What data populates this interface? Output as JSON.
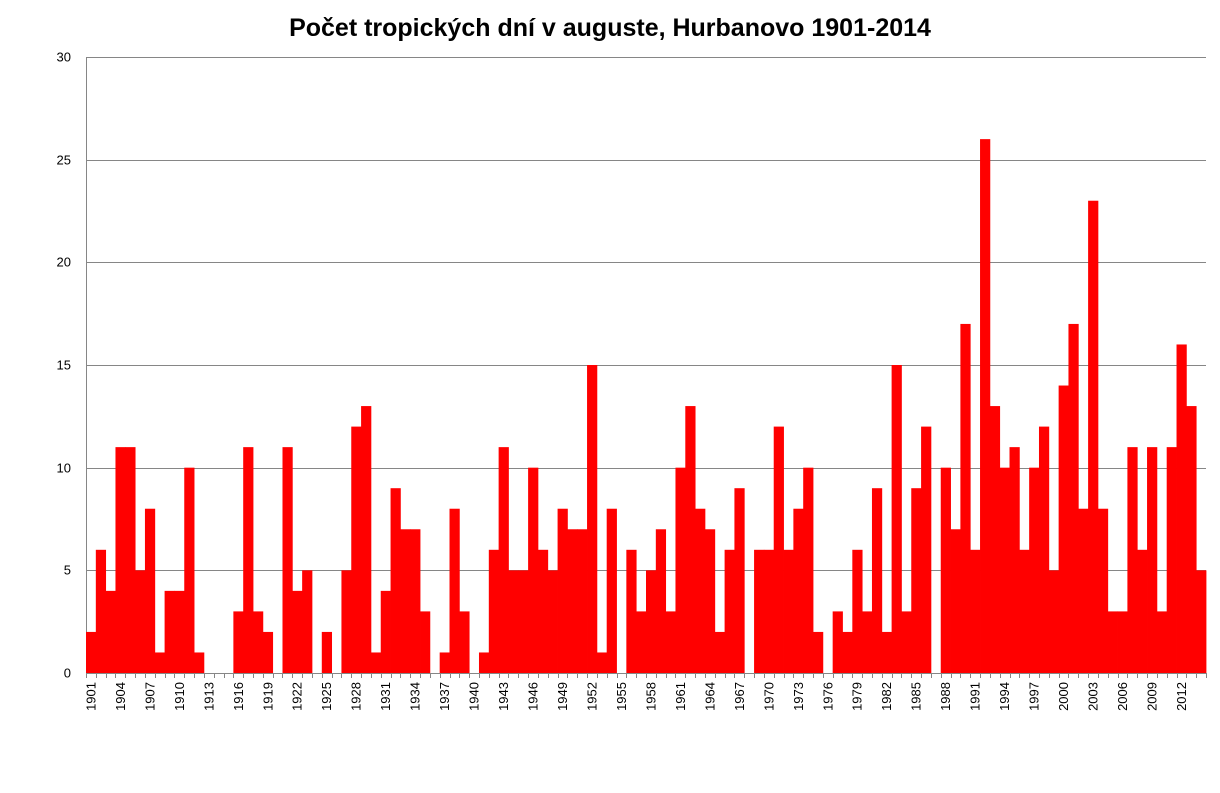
{
  "chart_data": {
    "type": "bar",
    "title": "Počet tropických dní v auguste, Hurbanovo 1901-2014",
    "xlabel": "",
    "ylabel": "",
    "ylim": [
      0,
      30
    ],
    "yticks": [
      0,
      5,
      10,
      15,
      20,
      25,
      30
    ],
    "grid": true,
    "legend": "none",
    "bar_color": "#ff0000",
    "gridline_color": "#868686",
    "categories": [
      1901,
      1902,
      1903,
      1904,
      1905,
      1906,
      1907,
      1908,
      1909,
      1910,
      1911,
      1912,
      1913,
      1914,
      1915,
      1916,
      1917,
      1918,
      1919,
      1920,
      1921,
      1922,
      1923,
      1924,
      1925,
      1926,
      1927,
      1928,
      1929,
      1930,
      1931,
      1932,
      1933,
      1934,
      1935,
      1936,
      1937,
      1938,
      1939,
      1940,
      1941,
      1942,
      1943,
      1944,
      1945,
      1946,
      1947,
      1948,
      1949,
      1950,
      1951,
      1952,
      1953,
      1954,
      1955,
      1956,
      1957,
      1958,
      1959,
      1960,
      1961,
      1962,
      1963,
      1964,
      1965,
      1966,
      1967,
      1968,
      1969,
      1970,
      1971,
      1972,
      1973,
      1974,
      1975,
      1976,
      1977,
      1978,
      1979,
      1980,
      1981,
      1982,
      1983,
      1984,
      1985,
      1986,
      1987,
      1988,
      1989,
      1990,
      1991,
      1992,
      1993,
      1994,
      1995,
      1996,
      1997,
      1998,
      1999,
      2000,
      2001,
      2002,
      2003,
      2004,
      2005,
      2006,
      2007,
      2008,
      2009,
      2010,
      2011,
      2012,
      2013,
      2014
    ],
    "tick_labels": [
      "1901",
      "1904",
      "1907",
      "1910",
      "1913",
      "1916",
      "1919",
      "1922",
      "1925",
      "1928",
      "1931",
      "1934",
      "1937",
      "1940",
      "1943",
      "1946",
      "1949",
      "1952",
      "1955",
      "1958",
      "1961",
      "1964",
      "1967",
      "1970",
      "1973",
      "1976",
      "1979",
      "1982",
      "1985",
      "1988",
      "1991",
      "1994",
      "1997",
      "2000",
      "2003",
      "2006",
      "2009",
      "2012"
    ],
    "values": [
      2,
      6,
      4,
      11,
      11,
      5,
      8,
      1,
      4,
      4,
      10,
      1,
      0,
      0,
      0,
      3,
      11,
      3,
      2,
      0,
      11,
      4,
      5,
      0,
      2,
      0,
      5,
      12,
      13,
      1,
      4,
      9,
      7,
      7,
      3,
      0,
      1,
      8,
      3,
      0,
      1,
      6,
      11,
      5,
      5,
      10,
      6,
      5,
      8,
      7,
      7,
      15,
      1,
      8,
      0,
      6,
      3,
      5,
      7,
      3,
      10,
      13,
      8,
      7,
      2,
      6,
      9,
      0,
      6,
      6,
      12,
      6,
      8,
      10,
      2,
      0,
      3,
      2,
      6,
      3,
      9,
      2,
      15,
      3,
      9,
      12,
      0,
      10,
      7,
      17,
      6,
      26,
      13,
      10,
      11,
      6,
      10,
      12,
      5,
      14,
      17,
      8,
      23,
      8,
      3,
      3,
      11,
      6,
      11,
      3,
      11,
      16,
      13,
      5
    ]
  }
}
